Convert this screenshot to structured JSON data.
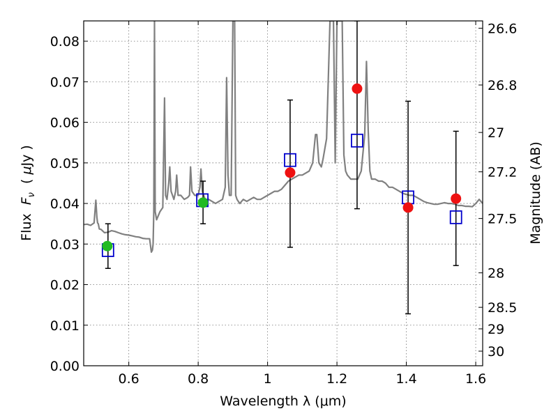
{
  "chart_data": {
    "type": "scatter",
    "xlabel": "Wavelength  λ (μm)",
    "ylabel": "Flux  F_ν ( μJy )",
    "ylabel_parts": {
      "prefix": "Flux  ",
      "symbol": "F",
      "subscript": "ν",
      "mid": "  ( ",
      "mu": "μ",
      "suffix": "Jy )"
    },
    "ylabel_right": "Magnitude (AB)",
    "xlim": [
      0.47,
      1.62
    ],
    "ylim": [
      0.0,
      0.085
    ],
    "x_ticks": [
      0.6,
      0.8,
      1.0,
      1.2,
      1.4,
      1.6
    ],
    "x_tick_labels": [
      "0.6",
      "0.8",
      "1",
      "1.2",
      "1.4",
      "1.6"
    ],
    "y_ticks": [
      0.0,
      0.01,
      0.02,
      0.03,
      0.04,
      0.05,
      0.06,
      0.07,
      0.08
    ],
    "y_tick_labels": [
      "0.00",
      "0.01",
      "0.02",
      "0.03",
      "0.04",
      "0.05",
      "0.06",
      "0.07",
      "0.08"
    ],
    "right_ticks": [
      {
        "label": "26.6",
        "flux": 0.0832
      },
      {
        "label": "26.8",
        "flux": 0.0692
      },
      {
        "label": "27",
        "flux": 0.0575
      },
      {
        "label": "27.2",
        "flux": 0.0478
      },
      {
        "label": "27.5",
        "flux": 0.0363
      },
      {
        "label": "28",
        "flux": 0.0229
      },
      {
        "label": "28.5",
        "flux": 0.0144
      },
      {
        "label": "29",
        "flux": 0.0091
      },
      {
        "label": "30",
        "flux": 0.0036
      }
    ],
    "grid": true,
    "colors": {
      "spectrum": "#808080",
      "green_points": "#22bb22",
      "red_points": "#ee1111",
      "model_boxes": "#0000cc",
      "error_bars": "#000000"
    },
    "series": [
      {
        "name": "model spectrum",
        "kind": "line",
        "x": [
          0.47,
          0.48,
          0.49,
          0.5,
          0.505,
          0.508,
          0.51,
          0.512,
          0.515,
          0.52,
          0.53,
          0.54,
          0.55,
          0.56,
          0.57,
          0.58,
          0.59,
          0.6,
          0.61,
          0.62,
          0.63,
          0.64,
          0.65,
          0.66,
          0.665,
          0.668,
          0.67,
          0.672,
          0.674,
          0.676,
          0.68,
          0.69,
          0.698,
          0.7,
          0.703,
          0.706,
          0.71,
          0.715,
          0.718,
          0.722,
          0.73,
          0.735,
          0.738,
          0.742,
          0.75,
          0.76,
          0.77,
          0.775,
          0.778,
          0.782,
          0.79,
          0.8,
          0.805,
          0.808,
          0.812,
          0.82,
          0.83,
          0.84,
          0.85,
          0.86,
          0.87,
          0.878,
          0.882,
          0.886,
          0.89,
          0.895,
          0.9,
          0.905,
          0.908,
          0.912,
          0.92,
          0.93,
          0.94,
          0.95,
          0.96,
          0.97,
          0.98,
          0.99,
          1.0,
          1.01,
          1.02,
          1.03,
          1.04,
          1.05,
          1.06,
          1.07,
          1.08,
          1.09,
          1.1,
          1.11,
          1.12,
          1.13,
          1.138,
          1.142,
          1.148,
          1.155,
          1.16,
          1.17,
          1.18,
          1.19,
          1.195,
          1.2,
          1.205,
          1.21,
          1.215,
          1.22,
          1.225,
          1.23,
          1.24,
          1.25,
          1.26,
          1.27,
          1.28,
          1.285,
          1.29,
          1.295,
          1.3,
          1.31,
          1.32,
          1.33,
          1.34,
          1.35,
          1.36,
          1.37,
          1.38,
          1.39,
          1.4,
          1.41,
          1.42,
          1.43,
          1.44,
          1.45,
          1.46,
          1.47,
          1.48,
          1.49,
          1.5,
          1.51,
          1.52,
          1.53,
          1.54,
          1.55,
          1.56,
          1.57,
          1.58,
          1.59,
          1.6,
          1.61,
          1.62
        ],
        "y": [
          0.0348,
          0.0349,
          0.0346,
          0.0352,
          0.0408,
          0.0366,
          0.0352,
          0.035,
          0.0337,
          0.0336,
          0.0328,
          0.0329,
          0.0333,
          0.0331,
          0.0328,
          0.0325,
          0.0323,
          0.0322,
          0.032,
          0.0318,
          0.0317,
          0.0314,
          0.0313,
          0.0313,
          0.028,
          0.0285,
          0.03,
          0.038,
          0.085,
          0.038,
          0.036,
          0.038,
          0.039,
          0.05,
          0.066,
          0.042,
          0.041,
          0.045,
          0.049,
          0.043,
          0.041,
          0.043,
          0.047,
          0.042,
          0.042,
          0.041,
          0.0415,
          0.042,
          0.049,
          0.043,
          0.042,
          0.042,
          0.044,
          0.0485,
          0.043,
          0.041,
          0.041,
          0.0405,
          0.04,
          0.0405,
          0.041,
          0.044,
          0.071,
          0.047,
          0.042,
          0.042,
          0.085,
          0.085,
          0.042,
          0.041,
          0.04,
          0.041,
          0.0405,
          0.041,
          0.0415,
          0.041,
          0.041,
          0.0415,
          0.042,
          0.0425,
          0.043,
          0.043,
          0.0435,
          0.0445,
          0.0455,
          0.046,
          0.0465,
          0.047,
          0.047,
          0.0475,
          0.048,
          0.05,
          0.057,
          0.057,
          0.05,
          0.049,
          0.051,
          0.056,
          0.085,
          0.085,
          0.05,
          0.085,
          0.085,
          0.085,
          0.085,
          0.052,
          0.048,
          0.047,
          0.046,
          0.046,
          0.046,
          0.048,
          0.057,
          0.075,
          0.058,
          0.048,
          0.046,
          0.046,
          0.0455,
          0.0455,
          0.045,
          0.044,
          0.044,
          0.0435,
          0.043,
          0.0425,
          0.0422,
          0.042,
          0.042,
          0.0415,
          0.041,
          0.0405,
          0.0402,
          0.04,
          0.0398,
          0.0398,
          0.04,
          0.0402,
          0.04,
          0.04,
          0.0398,
          0.0395,
          0.0395,
          0.0393,
          0.0393,
          0.0392,
          0.04,
          0.041,
          0.04
        ]
      },
      {
        "name": "green photometry",
        "kind": "points",
        "x": [
          0.538,
          0.814
        ],
        "y": [
          0.0295,
          0.0402
        ]
      },
      {
        "name": "red photometry",
        "kind": "points",
        "x": [
          1.065,
          1.258,
          1.405,
          1.543
        ],
        "y": [
          0.0476,
          0.0683,
          0.039,
          0.0412
        ]
      },
      {
        "name": "model band fluxes",
        "kind": "squares",
        "x": [
          0.54,
          0.812,
          1.065,
          1.258,
          1.405,
          1.543
        ],
        "y": [
          0.0285,
          0.0408,
          0.0507,
          0.0555,
          0.0415,
          0.0366
        ]
      },
      {
        "name": "error bars",
        "kind": "errorbars",
        "x": [
          0.54,
          0.814,
          1.065,
          1.258,
          1.405,
          1.543
        ],
        "y_low": [
          0.024,
          0.035,
          0.0292,
          0.0387,
          0.0128,
          0.0247
        ],
        "y_high": [
          0.035,
          0.0455,
          0.0655,
          0.085,
          0.0652,
          0.0578
        ]
      }
    ]
  }
}
